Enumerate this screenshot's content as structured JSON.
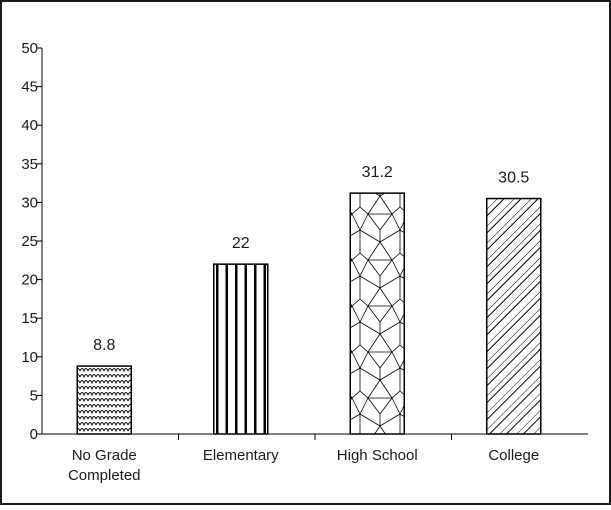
{
  "chart_data": {
    "type": "bar",
    "title": "",
    "xlabel": "",
    "ylabel": "",
    "categories": [
      "No Grade Completed",
      "Elementary",
      "High School",
      "College"
    ],
    "category_lines": [
      [
        "No Grade",
        "Completed"
      ],
      [
        "Elementary"
      ],
      [
        "High School"
      ],
      [
        "College"
      ]
    ],
    "values": [
      8.8,
      22,
      31.2,
      30.5
    ],
    "value_labels": [
      "8.8",
      "22",
      "31.2",
      "30.5"
    ],
    "patterns": [
      "wave-scales",
      "vertical-stripes",
      "triangular-mesh",
      "diagonal-hatch"
    ],
    "ylim": [
      0,
      50
    ],
    "yticks": [
      0,
      5,
      10,
      15,
      20,
      25,
      30,
      35,
      40,
      45,
      50
    ],
    "grid": false,
    "bar_fill": "#ffffff",
    "bar_stroke": "#000000"
  }
}
